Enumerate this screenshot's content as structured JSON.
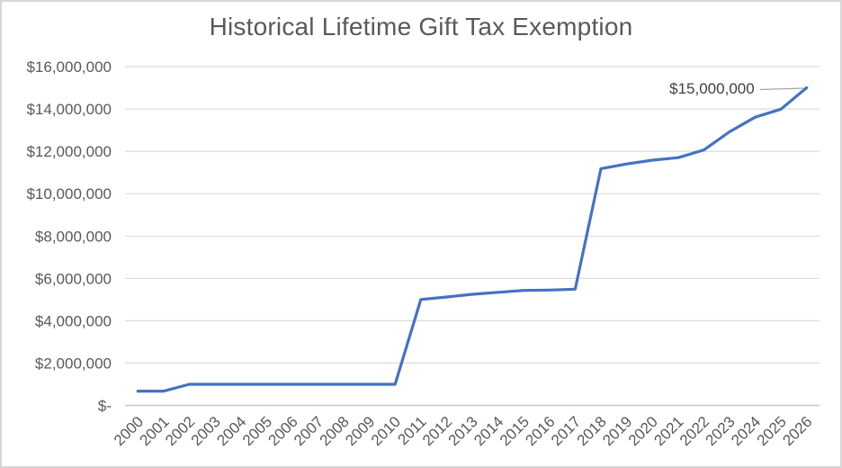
{
  "chart_data": {
    "type": "line",
    "title": "Historical Lifetime Gift Tax Exemption",
    "categories": [
      "2000",
      "2001",
      "2002",
      "2003",
      "2004",
      "2005",
      "2006",
      "2007",
      "2008",
      "2009",
      "2010",
      "2011",
      "2012",
      "2013",
      "2014",
      "2015",
      "2016",
      "2017",
      "2018",
      "2019",
      "2020",
      "2021",
      "2022",
      "2023",
      "2024",
      "2025",
      "2026"
    ],
    "series": [
      {
        "name": "Lifetime Gift Tax Exemption",
        "values": [
          675000,
          675000,
          1000000,
          1000000,
          1000000,
          1000000,
          1000000,
          1000000,
          1000000,
          1000000,
          1000000,
          5000000,
          5120000,
          5250000,
          5340000,
          5430000,
          5450000,
          5490000,
          11180000,
          11400000,
          11580000,
          11700000,
          12060000,
          12920000,
          13610000,
          13990000,
          15000000
        ]
      }
    ],
    "xlabel": "",
    "ylabel": "",
    "ylim": [
      0,
      16000000
    ],
    "ytick_step": 2000000,
    "ytick_labels": [
      "$-",
      "$2,000,000",
      "$4,000,000",
      "$6,000,000",
      "$8,000,000",
      "$10,000,000",
      "$12,000,000",
      "$14,000,000",
      "$16,000,000"
    ],
    "grid": true,
    "legend": "none",
    "annotation": {
      "text": "$15,000,000",
      "target_category": "2026"
    },
    "colors": {
      "line": "#4472C4",
      "gridline": "#DBDBDB",
      "axis_line": "#C8C8C8",
      "axis_label": "#595959",
      "title": "#595959",
      "annotation_text": "#404040",
      "leader_line": "#A6A6A6",
      "frame_border": "#D6D6D6"
    }
  }
}
